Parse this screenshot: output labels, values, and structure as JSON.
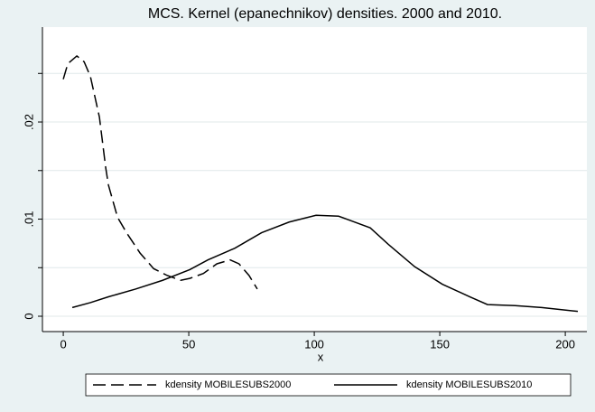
{
  "chart_data": {
    "type": "line",
    "title": "MCS. Kernel (epanechnikov) densities. 2000 and 2010.",
    "x_label": "x",
    "xlim": [
      -8.3,
      208.6
    ],
    "xticks": [
      0,
      50,
      100,
      150,
      200
    ],
    "ylim": [
      -0.00158,
      0.02977
    ],
    "yticks": [
      {
        "value": 0,
        "label": "0"
      },
      {
        "value": 0.01,
        "label": ".01"
      },
      {
        "value": 0.02,
        "label": ".02"
      }
    ],
    "yminorticks": [
      0.005,
      0.015,
      0.025
    ],
    "grid": true,
    "series": [
      {
        "name": "kdensity MOBILESUBS2000",
        "color": "#000000",
        "dash": "dashed",
        "x": [
          0,
          1.8,
          5.4,
          8.3,
          10.8,
          14.4,
          16.9,
          18,
          21.6,
          25.2,
          30.6,
          36,
          41.4,
          46.8,
          50.4,
          55.8,
          61.2,
          66.5,
          70,
          74,
          77.3
        ],
        "values": [
          0.0244,
          0.026,
          0.0268,
          0.0262,
          0.0247,
          0.0205,
          0.0153,
          0.0135,
          0.0102,
          0.0086,
          0.0065,
          0.0049,
          0.0042,
          0.0037,
          0.0039,
          0.0044,
          0.0054,
          0.0058,
          0.0054,
          0.0042,
          0.0028
        ]
      },
      {
        "name": "kdensity MOBILESUBS2010",
        "color": "#000000",
        "dash": "solid",
        "x": [
          3.6,
          10.8,
          18,
          28.8,
          39.6,
          50.4,
          57.6,
          68.3,
          79,
          90,
          100.7,
          109.7,
          115,
          122.3,
          129.5,
          140,
          151,
          162,
          169,
          180,
          190.6,
          205
        ],
        "values": [
          0.0009,
          0.0014,
          0.002,
          0.0028,
          0.0037,
          0.0048,
          0.0058,
          0.007,
          0.0086,
          0.0097,
          0.0104,
          0.0103,
          0.0098,
          0.0091,
          0.0074,
          0.0051,
          0.0033,
          0.002,
          0.0012,
          0.0011,
          0.0009,
          0.0005
        ]
      }
    ]
  }
}
